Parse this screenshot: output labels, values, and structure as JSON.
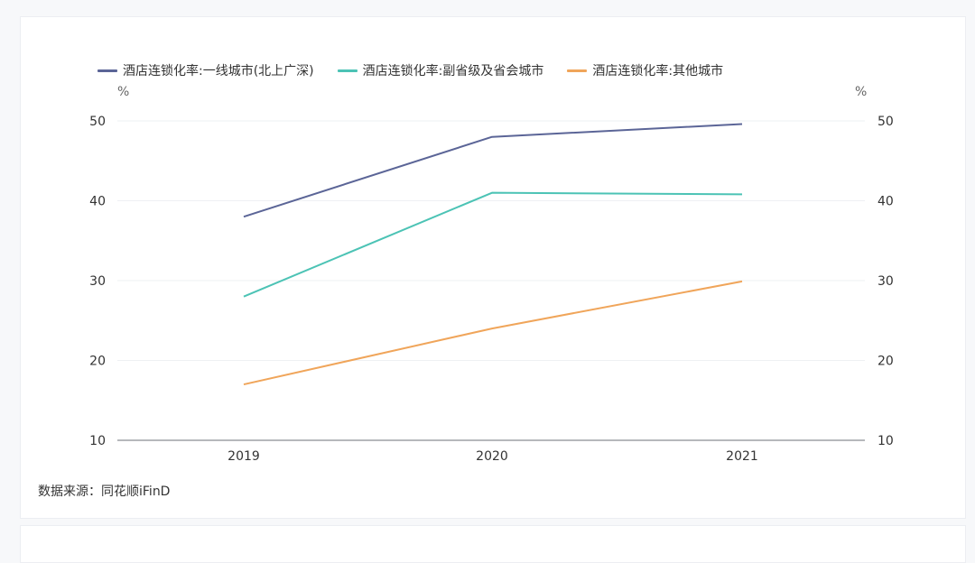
{
  "chart_data": {
    "type": "line",
    "title": "",
    "x": [
      "2019",
      "2020",
      "2021"
    ],
    "series": [
      {
        "name": "酒店连锁化率:一线城市(北上广深)",
        "values": [
          38,
          48,
          49.6
        ],
        "color": "#5b6597"
      },
      {
        "name": "酒店连锁化率:副省级及省会城市",
        "values": [
          28,
          41,
          40.8
        ],
        "color": "#4cc3b5"
      },
      {
        "name": "酒店连锁化率:其他城市",
        "values": [
          17,
          24,
          29.9
        ],
        "color": "#f0a55a"
      }
    ],
    "ylim": [
      10,
      50
    ],
    "yticks": [
      10,
      20,
      30,
      40,
      50
    ],
    "y_unit_left": "%",
    "y_unit_right": "%",
    "grid": true,
    "legend": "top-left"
  },
  "source": "数据来源：同花顺iFinD"
}
